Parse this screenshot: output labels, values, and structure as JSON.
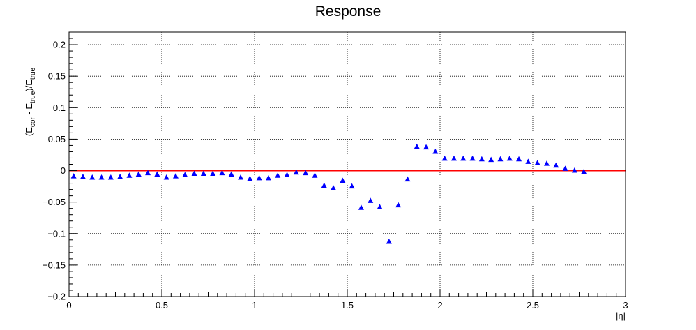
{
  "chart_data": {
    "type": "scatter",
    "title": "Response",
    "xlabel": "|η|",
    "ylabel": {
      "parts": [
        "(E",
        "cor",
        " - E",
        "true",
        ")/E",
        "true"
      ]
    },
    "xlim": [
      0,
      3
    ],
    "ylim": [
      -0.2,
      0.22
    ],
    "xticks": [
      0,
      0.5,
      1,
      1.5,
      2,
      2.5,
      3
    ],
    "xtick_labels": [
      "0",
      "0.5",
      "1",
      "1.5",
      "2",
      "2.5",
      "3"
    ],
    "yticks": [
      -0.2,
      -0.15,
      -0.1,
      -0.05,
      0,
      0.05,
      0.1,
      0.15,
      0.2
    ],
    "ytick_labels": [
      "−0.2",
      "−0.15",
      "−0.1",
      "−0.05",
      "0",
      "0.05",
      "0.1",
      "0.15",
      "0.2"
    ],
    "grid": true,
    "reference_line": {
      "y": 0,
      "color": "#ff0000"
    },
    "marker_color": "#0000ff",
    "marker": "triangle-up",
    "series": [
      {
        "x": [
          0.025,
          0.075,
          0.125,
          0.175,
          0.225,
          0.275,
          0.325,
          0.375,
          0.425,
          0.475,
          0.525,
          0.575,
          0.625,
          0.675,
          0.725,
          0.775,
          0.825,
          0.875,
          0.925,
          0.975,
          1.025,
          1.075,
          1.125,
          1.175,
          1.225,
          1.275,
          1.325,
          1.375,
          1.425,
          1.475,
          1.525,
          1.575,
          1.625,
          1.675,
          1.725,
          1.775,
          1.825,
          1.875,
          1.925,
          1.975,
          2.025,
          2.075,
          2.125,
          2.175,
          2.225,
          2.275,
          2.325,
          2.375,
          2.425,
          2.475,
          2.525,
          2.575,
          2.625,
          2.675,
          2.725,
          2.775
        ],
        "y": [
          -0.009,
          -0.01,
          -0.011,
          -0.011,
          -0.011,
          -0.01,
          -0.008,
          -0.006,
          -0.004,
          -0.006,
          -0.011,
          -0.009,
          -0.007,
          -0.005,
          -0.005,
          -0.005,
          -0.004,
          -0.006,
          -0.011,
          -0.013,
          -0.012,
          -0.012,
          -0.008,
          -0.007,
          -0.003,
          -0.004,
          -0.008,
          -0.024,
          -0.028,
          -0.016,
          -0.025,
          -0.059,
          -0.048,
          -0.058,
          -0.113,
          -0.055,
          -0.014,
          0.038,
          0.037,
          0.03,
          0.019,
          0.019,
          0.019,
          0.019,
          0.018,
          0.017,
          0.018,
          0.019,
          0.018,
          0.014,
          0.012,
          0.011,
          0.008,
          0.003,
          0.0,
          -0.002
        ]
      }
    ]
  }
}
